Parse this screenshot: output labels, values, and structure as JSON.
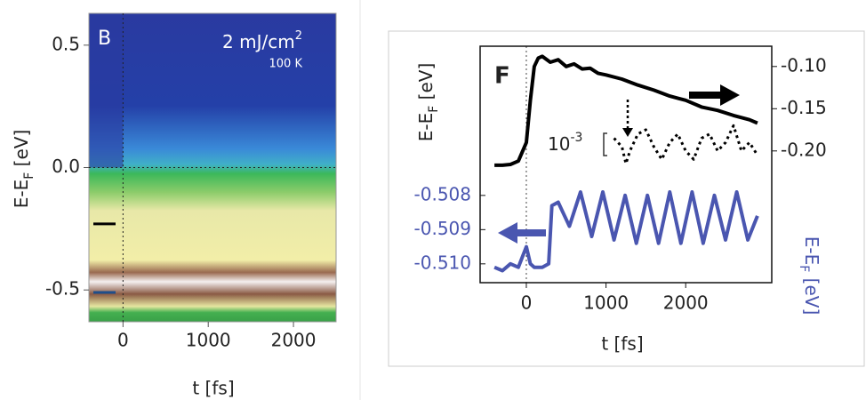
{
  "chart_data": [
    {
      "type": "heatmap",
      "panel_label": "B",
      "annotation": {
        "text": "2 mJ/cm",
        "sup": "2"
      },
      "annotation2": "100 K",
      "xlabel": "t [fs]",
      "ylabel": {
        "main": "E-E",
        "sub": "F",
        "unit": " [eV]"
      },
      "xlim": [
        -400,
        2500
      ],
      "xticks": [
        0,
        1000,
        2000
      ],
      "ylim": [
        -0.63,
        0.63
      ],
      "yticks": [
        -0.5,
        {
          "value": 0,
          "label": "0.0"
        },
        0.5
      ],
      "vline": 0,
      "hline": 0,
      "markers": [
        {
          "value": -0.23,
          "color": "#000000"
        },
        {
          "value": -0.51,
          "color": "#1f4e8a"
        }
      ]
    },
    {
      "type": "line",
      "panel_label": "F",
      "xlabel": "t [fs]",
      "ylabel": {
        "main": "E-E",
        "sub": "F",
        "unit": " [eV]"
      },
      "y2label": {
        "main": "E-E",
        "sub": "F",
        "unit": " [eV]"
      },
      "scale_note": {
        "base": "10",
        "sup": "-3"
      },
      "xlim": [
        -580,
        3080
      ],
      "xticks": [
        0,
        1000,
        2000
      ],
      "ylim": [
        -0.51055,
        -0.50364
      ],
      "yticks": [
        {
          "value": -0.51,
          "label": "-0.510"
        },
        -0.509,
        -0.508
      ],
      "y2lim": [
        -0.356,
        -0.076
      ],
      "y2ticks": [
        {
          "value": -0.2,
          "label": "-0.20"
        },
        -0.15,
        {
          "value": -0.1,
          "label": "-0.10"
        }
      ],
      "vline": 0,
      "series": [
        {
          "color": "#000000",
          "axis": "y2",
          "style": "solid",
          "x": [
            -400,
            -300,
            -200,
            -100,
            0,
            50,
            100,
            150,
            200,
            300,
            400,
            500,
            600,
            700,
            800,
            900,
            1000,
            1200,
            1400,
            1600,
            1800,
            2000,
            2200,
            2400,
            2600,
            2800,
            2900
          ],
          "values": [
            -0.217,
            -0.217,
            -0.216,
            -0.212,
            -0.19,
            -0.14,
            -0.1,
            -0.09,
            -0.088,
            -0.095,
            -0.092,
            -0.1,
            -0.097,
            -0.103,
            -0.102,
            -0.108,
            -0.11,
            -0.115,
            -0.122,
            -0.128,
            -0.135,
            -0.14,
            -0.148,
            -0.152,
            -0.158,
            -0.163,
            -0.167
          ]
        },
        {
          "color": "#000000",
          "axis": "y2",
          "style": "dotted",
          "x": [
            1100,
            1200,
            1250,
            1300,
            1400,
            1500,
            1600,
            1700,
            1800,
            1900,
            2000,
            2100,
            2200,
            2300,
            2400,
            2500,
            2600,
            2700,
            2800,
            2900
          ],
          "values": [
            -0.185,
            -0.195,
            -0.215,
            -0.2,
            -0.18,
            -0.175,
            -0.195,
            -0.21,
            -0.19,
            -0.18,
            -0.2,
            -0.21,
            -0.185,
            -0.18,
            -0.2,
            -0.19,
            -0.17,
            -0.2,
            -0.19,
            -0.205
          ]
        },
        {
          "color": "#4a56b0",
          "axis": "y",
          "style": "solid",
          "x": [
            -400,
            -300,
            -200,
            -100,
            -50,
            0,
            50,
            100,
            200,
            280,
            320,
            400,
            540,
            680,
            820,
            960,
            1100,
            1240,
            1380,
            1520,
            1660,
            1800,
            1940,
            2080,
            2220,
            2360,
            2500,
            2640,
            2780,
            2900
          ],
          "values": [
            -0.5101,
            -0.5102,
            -0.51,
            -0.5101,
            -0.5098,
            -0.5095,
            -0.51,
            -0.5101,
            -0.5101,
            -0.51,
            -0.5083,
            -0.5082,
            -0.5089,
            -0.5079,
            -0.5092,
            -0.5079,
            -0.5093,
            -0.508,
            -0.5094,
            -0.508,
            -0.5094,
            -0.5079,
            -0.5094,
            -0.5079,
            -0.5094,
            -0.508,
            -0.5093,
            -0.5079,
            -0.5093,
            -0.5086
          ]
        }
      ]
    }
  ]
}
